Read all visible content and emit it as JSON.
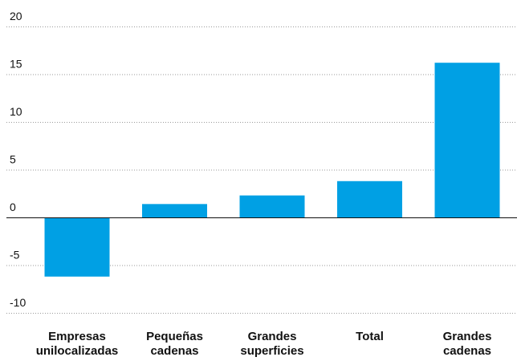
{
  "chart_data": {
    "type": "bar",
    "categories": [
      [
        "Empresas",
        "unilocalizadas"
      ],
      [
        "Pequeñas",
        "cadenas"
      ],
      [
        "Grandes",
        "superficies"
      ],
      [
        "Total"
      ],
      [
        "Grandes",
        "cadenas"
      ]
    ],
    "values": [
      -6.2,
      1.4,
      2.3,
      3.8,
      16.2
    ],
    "ylim": [
      -10,
      20
    ],
    "yticks": [
      "20",
      "15",
      "10",
      "5",
      "0",
      "-5",
      "-10"
    ],
    "grid": true,
    "bar_color": "#00a0e4",
    "title": "",
    "xlabel": "",
    "ylabel": ""
  }
}
